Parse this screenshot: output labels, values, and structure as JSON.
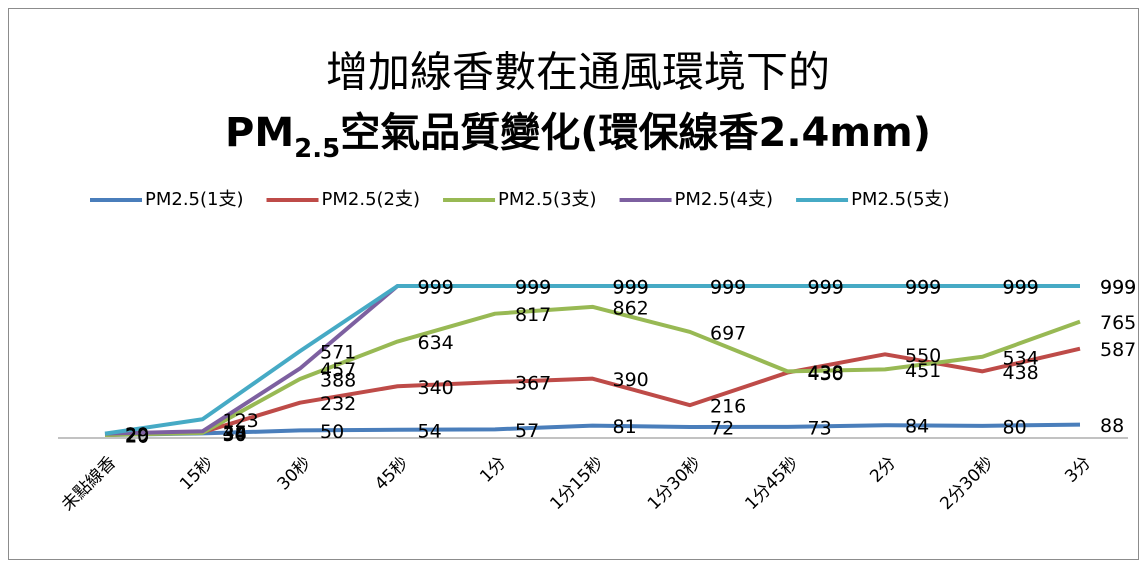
{
  "chart_data": {
    "type": "line",
    "title": [
      "增加線香數在通風環境下的",
      [
        "PM",
        "2.5",
        "空氣品質變化(環保線香2.4mm)"
      ]
    ],
    "categories": [
      "未點線香",
      "15秒",
      "30秒",
      "45秒",
      "1分",
      "1分15秒",
      "1分30秒",
      "1分45秒",
      "2分",
      "2分30秒",
      "3分"
    ],
    "ylim": [
      0,
      1000
    ],
    "legend": "top",
    "series": [
      {
        "name": "PM2.5(1支)",
        "color": "#4a7ebb",
        "values": [
          20,
          30,
          50,
          54,
          57,
          81,
          72,
          73,
          84,
          80,
          88
        ]
      },
      {
        "name": "PM2.5(2支)",
        "color": "#be4b48",
        "values": [
          20,
          38,
          232,
          340,
          367,
          390,
          216,
          430,
          550,
          438,
          587
        ]
      },
      {
        "name": "PM2.5(3支)",
        "color": "#98b954",
        "values": [
          20,
          34,
          388,
          634,
          817,
          862,
          697,
          438,
          451,
          534,
          765
        ]
      },
      {
        "name": "PM2.5(4支)",
        "color": "#7d60a0",
        "values": [
          29,
          44,
          457,
          999,
          999,
          999,
          999,
          999,
          999,
          999,
          999
        ]
      },
      {
        "name": "PM2.5(5支)",
        "color": "#46aac5",
        "values": [
          29,
          123,
          571,
          999,
          999,
          999,
          999,
          999,
          999,
          999,
          999
        ]
      }
    ]
  }
}
